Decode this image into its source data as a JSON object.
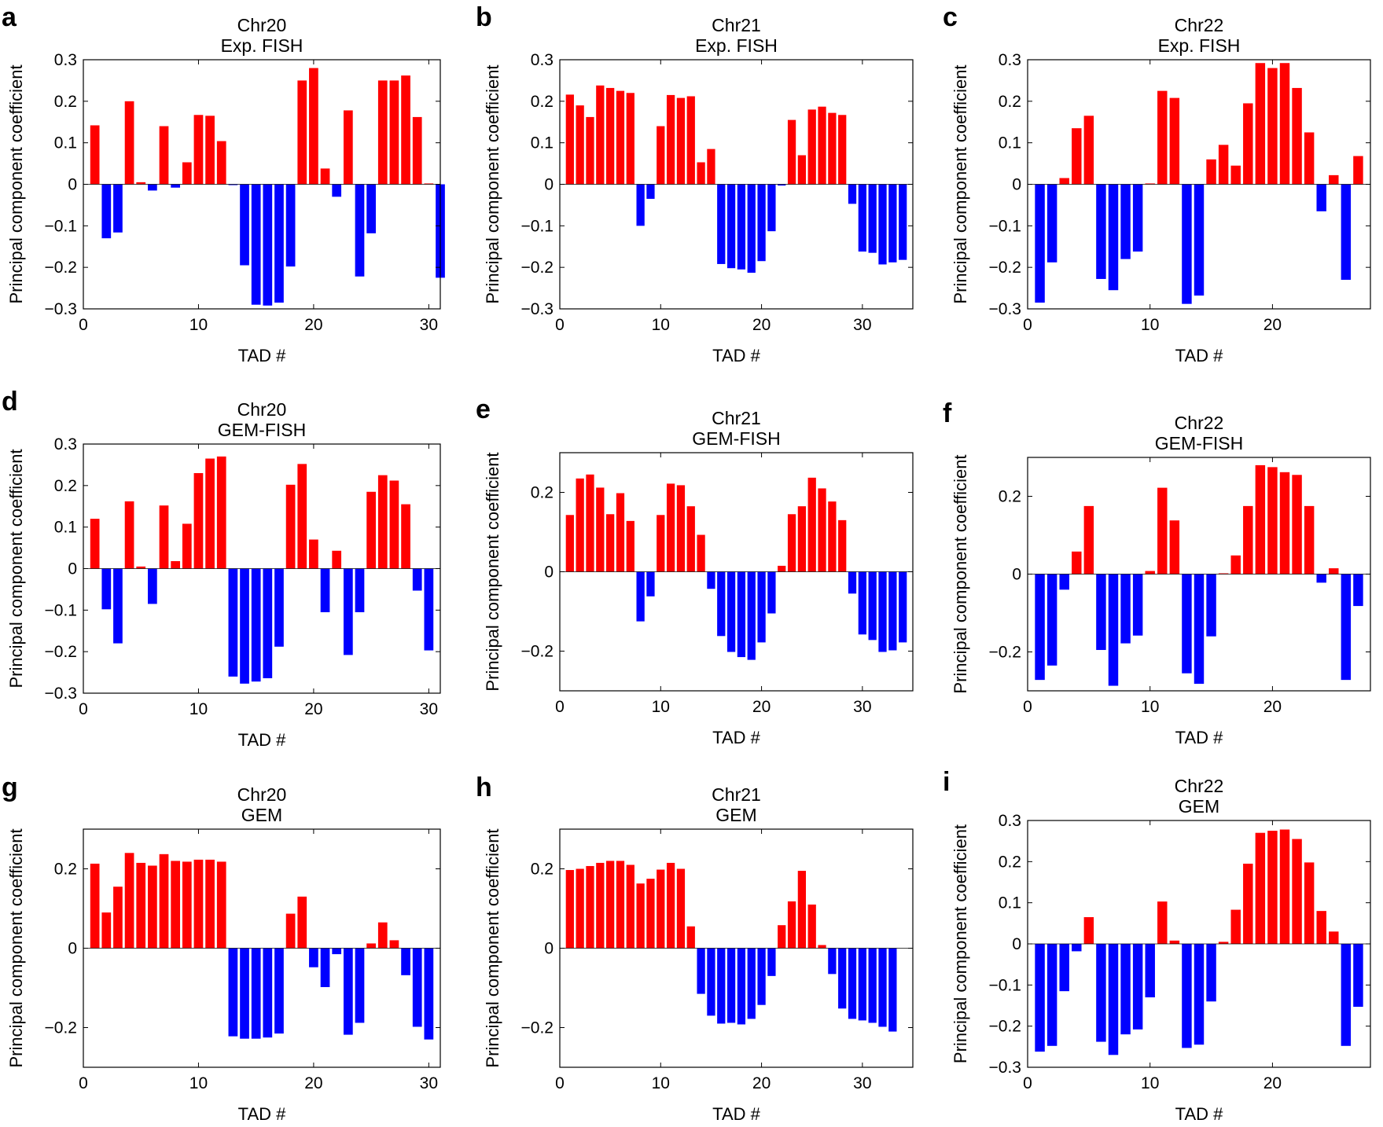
{
  "colors": {
    "positive": "#ff0000",
    "negative": "#0000ff",
    "axis": "#000000"
  },
  "chart_data": [
    {
      "panel": "a",
      "type": "bar",
      "title_line1": "Chr20",
      "title_line2": "Exp. FISH",
      "xlabel": "TAD #",
      "ylabel": "Principal component coefficient",
      "xlim": [
        0,
        31
      ],
      "ylim": [
        -0.3,
        0.3
      ],
      "xticks": [
        0,
        10,
        20,
        30
      ],
      "xtick_labels": [
        "0",
        "10",
        "20",
        "30"
      ],
      "yticks": [
        -0.3,
        -0.2,
        -0.1,
        0,
        0.1,
        0.2,
        0.3
      ],
      "ytick_labels": [
        "−0.3",
        "−0.2",
        "−0.1",
        "0",
        "0.1",
        "0.2",
        "0.3"
      ],
      "values": [
        0.142,
        -0.13,
        -0.116,
        0.2,
        0.005,
        -0.015,
        0.14,
        -0.008,
        0.053,
        0.167,
        0.165,
        0.104,
        -0.002,
        -0.195,
        -0.29,
        -0.292,
        -0.285,
        -0.198,
        0.25,
        0.28,
        0.038,
        -0.03,
        0.178,
        -0.222,
        -0.118,
        0.25,
        0.25,
        0.262,
        0.162,
        0.002,
        -0.225
      ]
    },
    {
      "panel": "b",
      "type": "bar",
      "title_line1": "Chr21",
      "title_line2": "Exp. FISH",
      "xlabel": "TAD #",
      "ylabel": "Principal component coefficient",
      "xlim": [
        0,
        35
      ],
      "ylim": [
        -0.3,
        0.3
      ],
      "xticks": [
        0,
        10,
        20,
        30
      ],
      "xtick_labels": [
        "0",
        "10",
        "20",
        "30"
      ],
      "yticks": [
        -0.3,
        -0.2,
        -0.1,
        0,
        0.1,
        0.2,
        0.3
      ],
      "ytick_labels": [
        "−0.3",
        "−0.2",
        "−0.1",
        "0",
        "0.1",
        "0.2",
        "0.3"
      ],
      "values": [
        0.216,
        0.19,
        0.162,
        0.238,
        0.232,
        0.225,
        0.22,
        -0.1,
        -0.035,
        0.14,
        0.215,
        0.208,
        0.212,
        0.053,
        0.085,
        -0.192,
        -0.202,
        -0.205,
        -0.213,
        -0.185,
        -0.113,
        -0.003,
        0.155,
        0.07,
        0.18,
        0.187,
        0.172,
        0.167,
        -0.047,
        -0.162,
        -0.165,
        -0.193,
        -0.188,
        -0.182
      ]
    },
    {
      "panel": "c",
      "type": "bar",
      "title_line1": "Chr22",
      "title_line2": "Exp. FISH",
      "xlabel": "TAD #",
      "ylabel": "Principal component coefficient",
      "xlim": [
        0,
        28
      ],
      "ylim": [
        -0.3,
        0.3
      ],
      "xticks": [
        0,
        10,
        20
      ],
      "xtick_labels": [
        "0",
        "10",
        "20"
      ],
      "yticks": [
        -0.3,
        -0.2,
        -0.1,
        0,
        0.1,
        0.2,
        0.3
      ],
      "ytick_labels": [
        "−0.3",
        "−0.2",
        "−0.1",
        "0",
        "0.1",
        "0.2",
        "0.3"
      ],
      "values": [
        -0.285,
        -0.188,
        0.015,
        0.135,
        0.165,
        -0.228,
        -0.255,
        -0.18,
        -0.162,
        0.002,
        0.225,
        0.208,
        -0.288,
        -0.268,
        0.06,
        0.095,
        0.045,
        0.195,
        0.292,
        0.28,
        0.292,
        0.232,
        0.125,
        -0.065,
        0.022,
        -0.23,
        0.068
      ]
    },
    {
      "panel": "d",
      "type": "bar",
      "title_line1": "Chr20",
      "title_line2": "GEM-FISH",
      "xlabel": "TAD #",
      "ylabel": "Principal component coefficient",
      "xlim": [
        0,
        31
      ],
      "ylim": [
        -0.3,
        0.3
      ],
      "xticks": [
        0,
        10,
        20,
        30
      ],
      "xtick_labels": [
        "0",
        "10",
        "20",
        "30"
      ],
      "yticks": [
        -0.3,
        -0.2,
        -0.1,
        0,
        0.1,
        0.2,
        0.3
      ],
      "ytick_labels": [
        "−0.3",
        "−0.2",
        "−0.1",
        "0",
        "0.1",
        "0.2",
        "0.3"
      ],
      "values": [
        0.12,
        -0.098,
        -0.18,
        0.162,
        0.005,
        -0.085,
        0.152,
        0.018,
        0.108,
        0.23,
        0.265,
        0.27,
        -0.26,
        -0.277,
        -0.272,
        -0.264,
        -0.188,
        0.202,
        0.252,
        0.07,
        -0.105,
        0.043,
        -0.208,
        -0.105,
        0.185,
        0.225,
        0.212,
        0.155,
        -0.053,
        -0.197
      ]
    },
    {
      "panel": "e",
      "type": "bar",
      "title_line1": "Chr21",
      "title_line2": "GEM-FISH",
      "xlabel": "TAD #",
      "ylabel": "Principal component coefficient",
      "xlim": [
        0,
        35
      ],
      "ylim": [
        -0.3,
        0.3
      ],
      "xticks": [
        0,
        10,
        20,
        30
      ],
      "xtick_labels": [
        "0",
        "10",
        "20",
        "30"
      ],
      "yticks": [
        -0.2,
        0,
        0.2
      ],
      "ytick_labels": [
        "−0.2",
        "0",
        "0.2"
      ],
      "values": [
        0.143,
        0.235,
        0.245,
        0.212,
        0.145,
        0.198,
        0.128,
        -0.125,
        -0.062,
        0.143,
        0.222,
        0.218,
        0.165,
        0.093,
        -0.043,
        -0.162,
        -0.202,
        -0.215,
        -0.222,
        -0.178,
        -0.105,
        0.015,
        0.145,
        0.165,
        0.237,
        0.21,
        0.177,
        0.13,
        -0.055,
        -0.158,
        -0.172,
        -0.202,
        -0.198,
        -0.178
      ]
    },
    {
      "panel": "f",
      "type": "bar",
      "title_line1": "Chr22",
      "title_line2": "GEM-FISH",
      "xlabel": "TAD #",
      "ylabel": "Principal component coefficient",
      "xlim": [
        0,
        28
      ],
      "ylim": [
        -0.3,
        0.3
      ],
      "xticks": [
        0,
        10,
        20
      ],
      "xtick_labels": [
        "0",
        "10",
        "20"
      ],
      "yticks": [
        -0.2,
        0,
        0.2
      ],
      "ytick_labels": [
        "−0.2",
        "0",
        "0.2"
      ],
      "values": [
        -0.272,
        -0.235,
        -0.04,
        0.058,
        0.175,
        -0.195,
        -0.287,
        -0.178,
        -0.158,
        0.008,
        0.222,
        0.138,
        -0.255,
        -0.282,
        -0.16,
        0.002,
        0.048,
        0.175,
        0.28,
        0.275,
        0.262,
        0.255,
        0.175,
        -0.022,
        0.015,
        -0.272,
        -0.082
      ]
    },
    {
      "panel": "g",
      "type": "bar",
      "title_line1": "Chr20",
      "title_line2": "GEM",
      "xlabel": "TAD #",
      "ylabel": "Principal component coefficient",
      "xlim": [
        0,
        31
      ],
      "ylim": [
        -0.3,
        0.3
      ],
      "xticks": [
        0,
        10,
        20,
        30
      ],
      "xtick_labels": [
        "0",
        "10",
        "20",
        "30"
      ],
      "yticks": [
        -0.2,
        0,
        0.2
      ],
      "ytick_labels": [
        "−0.2",
        "0",
        "0.2"
      ],
      "values": [
        0.213,
        0.09,
        0.155,
        0.24,
        0.215,
        0.208,
        0.237,
        0.22,
        0.218,
        0.223,
        0.223,
        0.218,
        -0.222,
        -0.228,
        -0.228,
        -0.225,
        -0.215,
        0.087,
        0.13,
        -0.048,
        -0.098,
        -0.015,
        -0.218,
        -0.188,
        0.012,
        0.065,
        0.02,
        -0.068,
        -0.198,
        -0.23
      ]
    },
    {
      "panel": "h",
      "type": "bar",
      "title_line1": "Chr21",
      "title_line2": "GEM",
      "xlabel": "TAD #",
      "ylabel": "Principal component coefficient",
      "xlim": [
        0,
        35
      ],
      "ylim": [
        -0.3,
        0.3
      ],
      "xticks": [
        0,
        10,
        20,
        30
      ],
      "xtick_labels": [
        "0",
        "10",
        "20",
        "30"
      ],
      "yticks": [
        -0.2,
        0,
        0.2
      ],
      "ytick_labels": [
        "−0.2",
        "0",
        "0.2"
      ],
      "values": [
        0.197,
        0.2,
        0.207,
        0.215,
        0.22,
        0.22,
        0.21,
        0.163,
        0.175,
        0.198,
        0.215,
        0.2,
        0.055,
        -0.115,
        -0.17,
        -0.19,
        -0.188,
        -0.192,
        -0.178,
        -0.143,
        -0.07,
        0.058,
        0.118,
        0.195,
        0.11,
        0.008,
        -0.065,
        -0.152,
        -0.178,
        -0.182,
        -0.188,
        -0.198,
        -0.21
      ]
    },
    {
      "panel": "i",
      "type": "bar",
      "title_line1": "Chr22",
      "title_line2": "GEM",
      "xlabel": "TAD #",
      "ylabel": "Principal component coefficient",
      "xlim": [
        0,
        28
      ],
      "ylim": [
        -0.3,
        0.3
      ],
      "xticks": [
        0,
        10,
        20
      ],
      "xtick_labels": [
        "0",
        "10",
        "20"
      ],
      "yticks": [
        -0.3,
        -0.2,
        -0.1,
        0,
        0.1,
        0.2,
        0.3
      ],
      "ytick_labels": [
        "−0.3",
        "−0.2",
        "−0.1",
        "0",
        "0.1",
        "0.2",
        "0.3"
      ],
      "values": [
        -0.262,
        -0.248,
        -0.115,
        -0.018,
        0.065,
        -0.238,
        -0.27,
        -0.22,
        -0.208,
        -0.13,
        0.103,
        0.008,
        -0.253,
        -0.245,
        -0.14,
        0.005,
        0.083,
        0.195,
        0.27,
        0.275,
        0.278,
        0.255,
        0.198,
        0.08,
        0.03,
        -0.248,
        -0.153
      ]
    }
  ]
}
